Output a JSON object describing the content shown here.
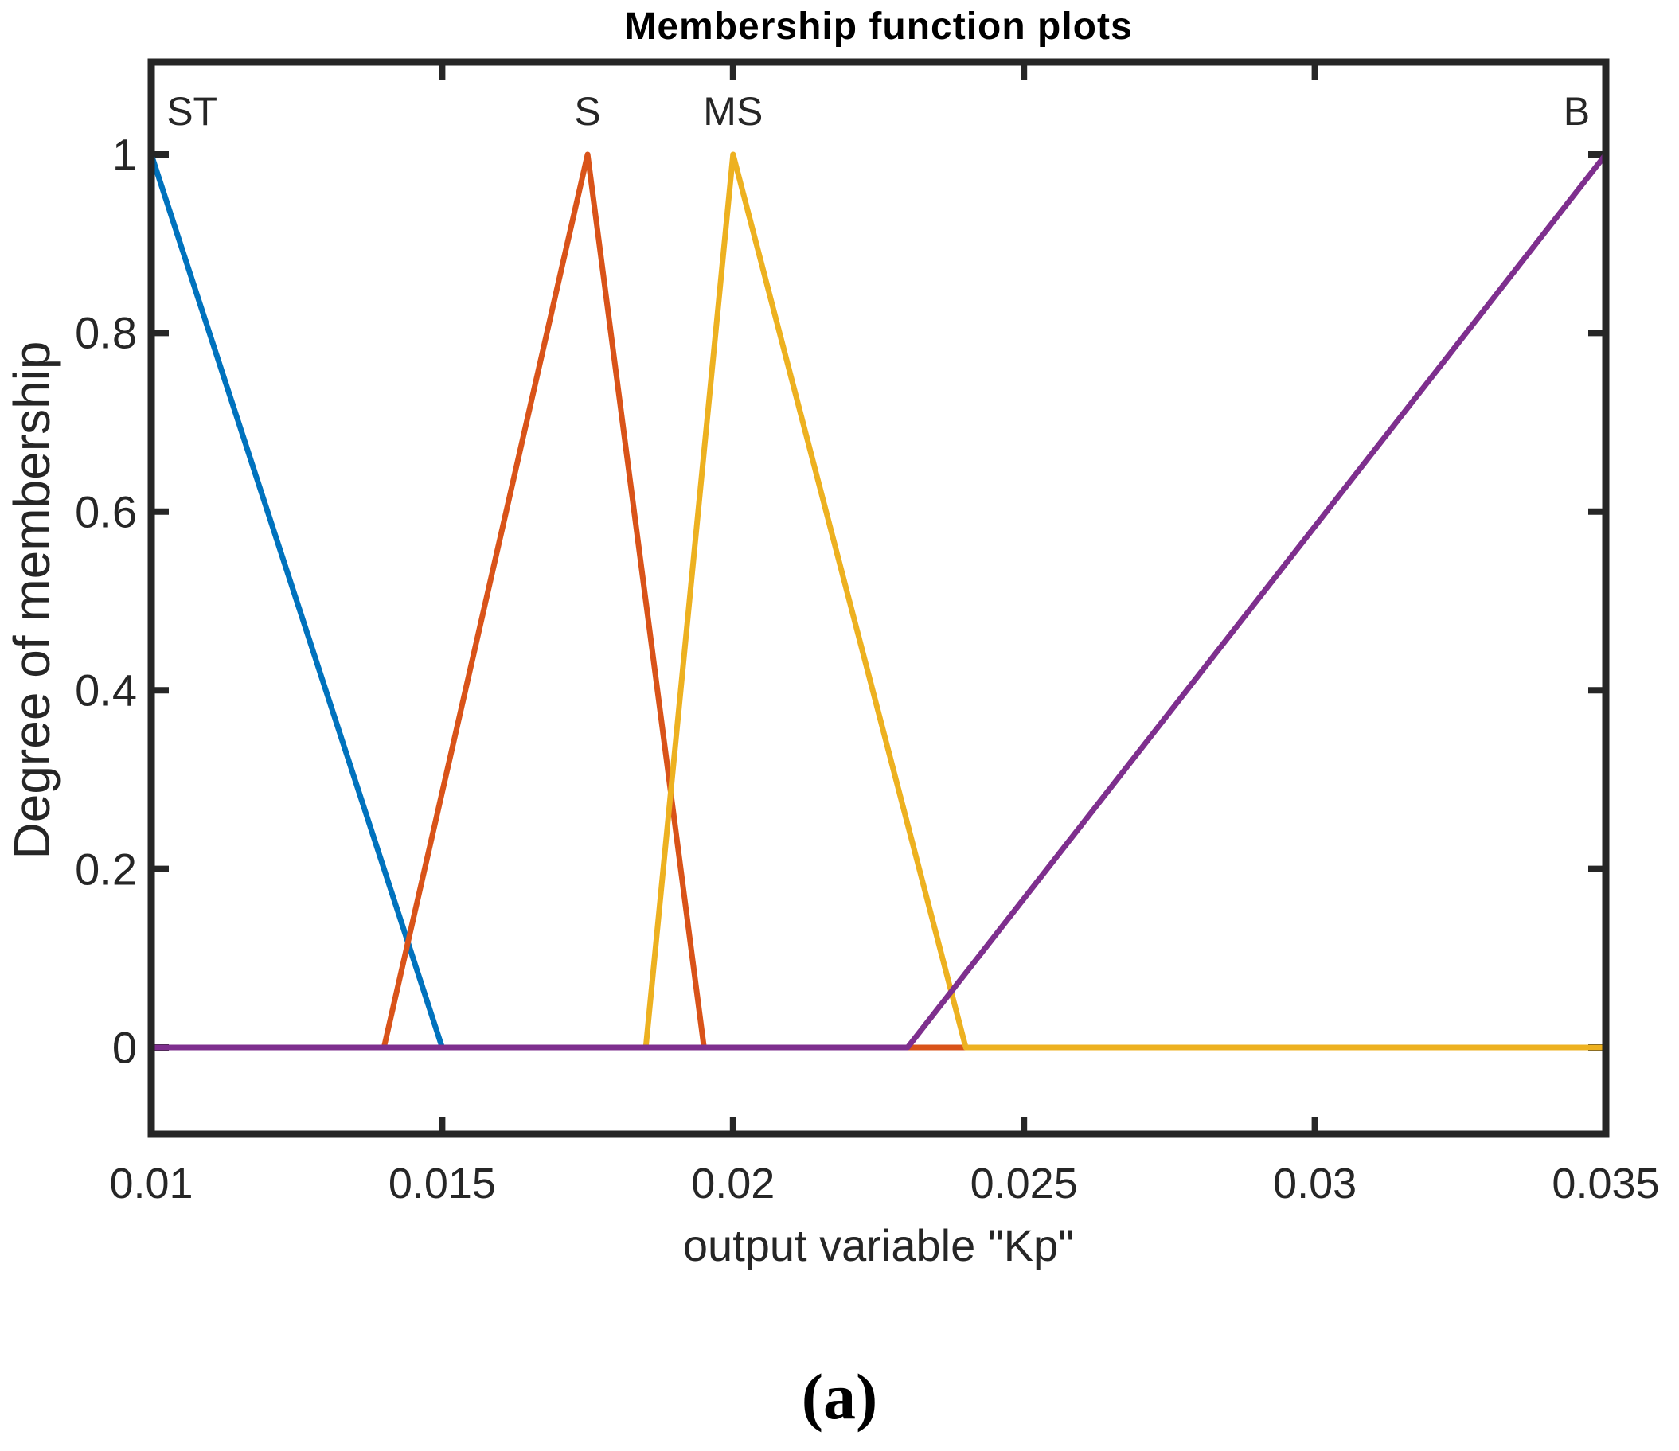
{
  "figure": {
    "caption": "(a)"
  },
  "chart_data": {
    "type": "line",
    "title": "Membership function plots",
    "xlabel": "output variable \"Kp\"",
    "ylabel": "Degree of membership",
    "xlim": [
      0.01,
      0.035
    ],
    "ylim": [
      -0.1,
      1.1
    ],
    "grid": false,
    "legend_position": "none",
    "axis_color": "#262626",
    "background_color": "#ffffff",
    "x_ticks": {
      "values": [
        0.01,
        0.015,
        0.02,
        0.025,
        0.03,
        0.035
      ],
      "labels": [
        "0.01",
        "0.015",
        "0.02",
        "0.025",
        "0.03",
        "0.035"
      ]
    },
    "y_ticks": {
      "values": [
        0,
        0.2,
        0.4,
        0.6,
        0.8,
        1
      ],
      "labels": [
        "0",
        "0.2",
        "0.4",
        "0.6",
        "0.8",
        "1"
      ]
    },
    "series": [
      {
        "name": "ST",
        "color": "#0072BD",
        "shape": "left-shoulder, membership 1 at 0.01 falling to 0 at 0.015",
        "points": [
          [
            0.01,
            1
          ],
          [
            0.015,
            0
          ],
          [
            0.035,
            0
          ]
        ]
      },
      {
        "name": "S",
        "color": "#D95319",
        "shape": "triangle with feet 0.014 and 0.0195, peak 0.0175",
        "points": [
          [
            0.01,
            0
          ],
          [
            0.014,
            0
          ],
          [
            0.0175,
            1
          ],
          [
            0.0195,
            0
          ],
          [
            0.035,
            0
          ]
        ]
      },
      {
        "name": "MS",
        "color": "#EDB120",
        "shape": "triangle with feet 0.0185 and 0.024, peak 0.02",
        "points": [
          [
            0.01,
            0
          ],
          [
            0.0185,
            0
          ],
          [
            0.02,
            1
          ],
          [
            0.024,
            0
          ],
          [
            0.035,
            0
          ]
        ]
      },
      {
        "name": "B",
        "color": "#7E2F8E",
        "shape": "right-shoulder, membership 0 at 0.023 rising to 1 at 0.035",
        "points": [
          [
            0.01,
            0
          ],
          [
            0.023,
            0
          ],
          [
            0.035,
            1
          ]
        ]
      }
    ],
    "mf_labels": [
      {
        "text": "ST",
        "x": 0.0107
      },
      {
        "text": "S",
        "x": 0.0175
      },
      {
        "text": "MS",
        "x": 0.02
      },
      {
        "text": "B",
        "x": 0.0345
      }
    ]
  }
}
